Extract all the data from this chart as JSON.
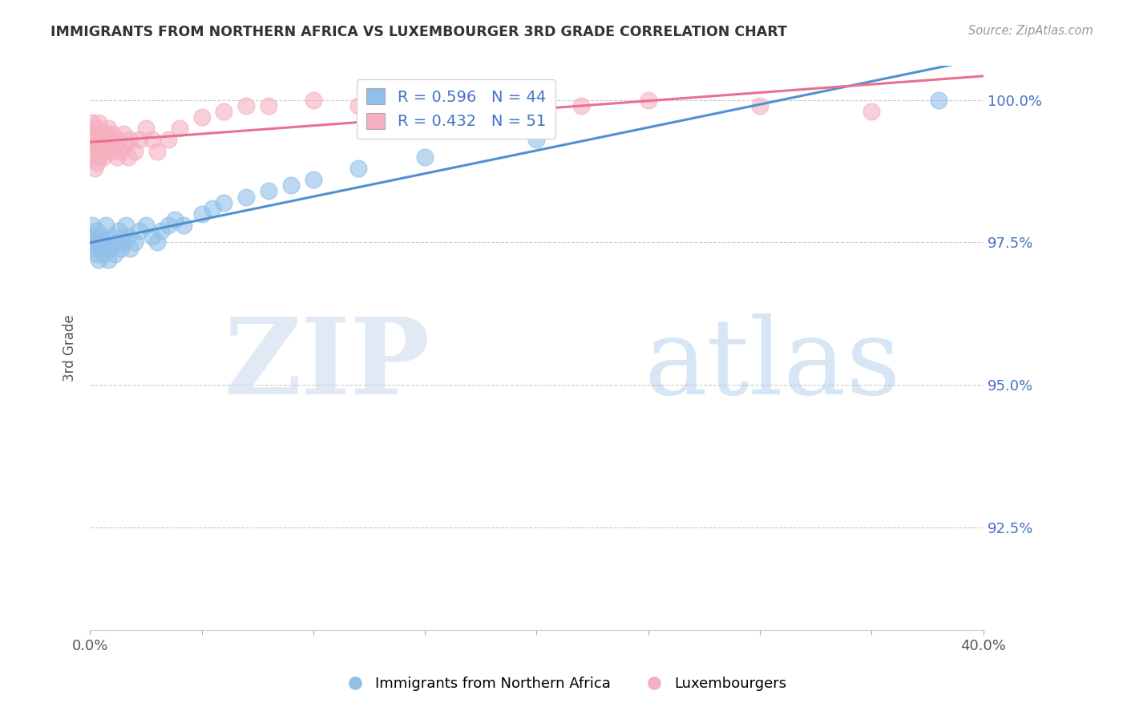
{
  "title": "IMMIGRANTS FROM NORTHERN AFRICA VS LUXEMBOURGER 3RD GRADE CORRELATION CHART",
  "source": "Source: ZipAtlas.com",
  "ylabel": "3rd Grade",
  "xlim": [
    0.0,
    0.4
  ],
  "ylim": [
    0.907,
    1.006
  ],
  "xtick_positions": [
    0.0,
    0.05,
    0.1,
    0.15,
    0.2,
    0.25,
    0.3,
    0.35,
    0.4
  ],
  "xticklabels": [
    "0.0%",
    "",
    "",
    "",
    "",
    "",
    "",
    "",
    "40.0%"
  ],
  "ytick_positions": [
    0.925,
    0.95,
    0.975,
    1.0
  ],
  "yticklabels": [
    "92.5%",
    "95.0%",
    "97.5%",
    "100.0%"
  ],
  "blue_color": "#90c0e8",
  "pink_color": "#f5b0c0",
  "blue_line_color": "#5090d0",
  "pink_line_color": "#e87090",
  "R_blue": 0.596,
  "N_blue": 44,
  "R_pink": 0.432,
  "N_pink": 51,
  "legend_label_blue": "Immigrants from Northern Africa",
  "legend_label_pink": "Luxembourgers",
  "watermark_zip": "ZIP",
  "watermark_atlas": "atlas",
  "blue_scatter_x": [
    0.001,
    0.001,
    0.002,
    0.002,
    0.003,
    0.003,
    0.004,
    0.004,
    0.005,
    0.005,
    0.006,
    0.006,
    0.007,
    0.008,
    0.009,
    0.01,
    0.011,
    0.012,
    0.013,
    0.014,
    0.015,
    0.016,
    0.017,
    0.018,
    0.02,
    0.022,
    0.025,
    0.028,
    0.03,
    0.032,
    0.035,
    0.038,
    0.042,
    0.05,
    0.055,
    0.06,
    0.07,
    0.08,
    0.09,
    0.1,
    0.12,
    0.15,
    0.2,
    0.38
  ],
  "blue_scatter_y": [
    0.975,
    0.978,
    0.974,
    0.976,
    0.973,
    0.977,
    0.972,
    0.975,
    0.974,
    0.976,
    0.975,
    0.973,
    0.978,
    0.972,
    0.974,
    0.976,
    0.973,
    0.975,
    0.977,
    0.974,
    0.975,
    0.978,
    0.976,
    0.974,
    0.975,
    0.977,
    0.978,
    0.976,
    0.975,
    0.977,
    0.978,
    0.979,
    0.978,
    0.98,
    0.981,
    0.982,
    0.983,
    0.984,
    0.985,
    0.986,
    0.988,
    0.99,
    0.993,
    1.0
  ],
  "pink_scatter_x": [
    0.001,
    0.001,
    0.001,
    0.002,
    0.002,
    0.002,
    0.003,
    0.003,
    0.003,
    0.004,
    0.004,
    0.004,
    0.005,
    0.005,
    0.006,
    0.006,
    0.007,
    0.007,
    0.008,
    0.008,
    0.009,
    0.01,
    0.01,
    0.011,
    0.012,
    0.013,
    0.014,
    0.015,
    0.016,
    0.017,
    0.018,
    0.02,
    0.022,
    0.025,
    0.028,
    0.03,
    0.035,
    0.04,
    0.05,
    0.06,
    0.07,
    0.08,
    0.1,
    0.12,
    0.15,
    0.18,
    0.2,
    0.22,
    0.25,
    0.3,
    0.35
  ],
  "pink_scatter_y": [
    0.99,
    0.993,
    0.996,
    0.988,
    0.991,
    0.994,
    0.989,
    0.992,
    0.995,
    0.99,
    0.993,
    0.996,
    0.991,
    0.994,
    0.99,
    0.993,
    0.991,
    0.994,
    0.992,
    0.995,
    0.993,
    0.991,
    0.994,
    0.992,
    0.99,
    0.993,
    0.991,
    0.994,
    0.992,
    0.99,
    0.993,
    0.991,
    0.993,
    0.995,
    0.993,
    0.991,
    0.993,
    0.995,
    0.997,
    0.998,
    0.999,
    0.999,
    1.0,
    0.999,
    0.998,
    0.999,
    1.0,
    0.999,
    1.0,
    0.999,
    0.998
  ]
}
